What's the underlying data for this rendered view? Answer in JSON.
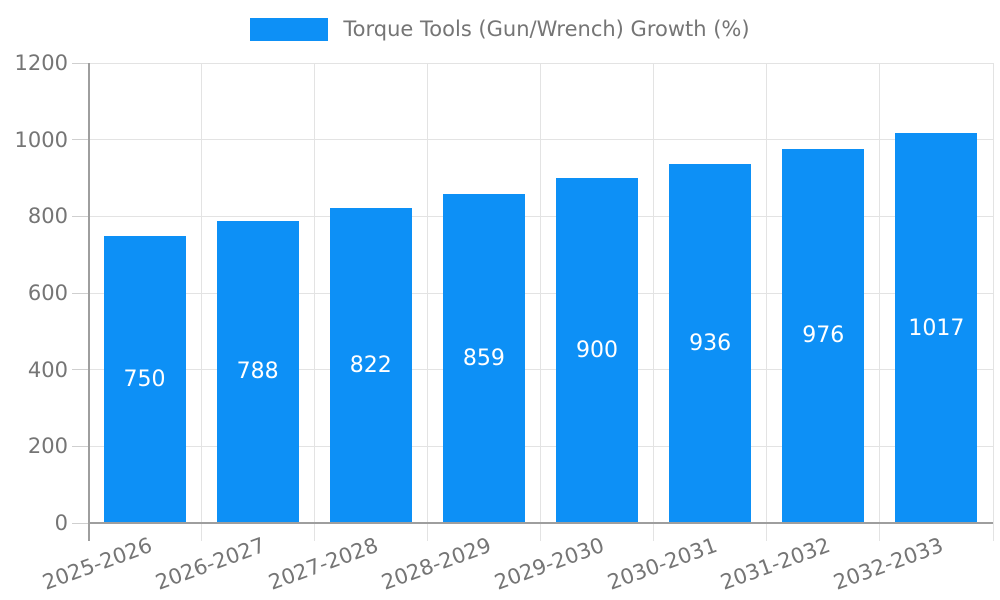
{
  "legend": {
    "label": "Torque Tools (Gun/Wrench) Growth (%)"
  },
  "colors": {
    "bar": "#0d90f6",
    "value_label": "#ffffff",
    "axis_text": "#757575",
    "gridline": "#e3e3e3",
    "axis_line": "#9e9e9e"
  },
  "chart_data": {
    "type": "bar",
    "title": "Torque Tools (Gun/Wrench) Growth (%)",
    "categories": [
      "2025-2026",
      "2026-2027",
      "2027-2028",
      "2028-2029",
      "2029-2030",
      "2030-2031",
      "2031-2032",
      "2032-2033"
    ],
    "values": [
      750,
      788,
      822,
      859,
      900,
      936,
      976,
      1017
    ],
    "xlabel": "",
    "ylabel": "",
    "ylim": [
      0,
      1200
    ],
    "yticks": [
      0,
      200,
      400,
      600,
      800,
      1000,
      1200
    ],
    "grid": true,
    "legend_position": "top-center",
    "bar_labels_inside": true,
    "x_label_rotation_deg": -20
  }
}
